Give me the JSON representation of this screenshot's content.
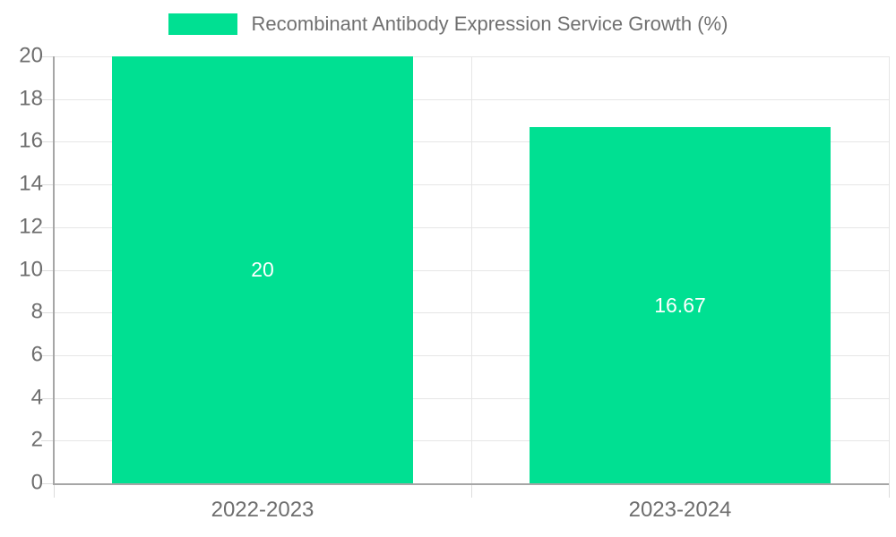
{
  "chart_data": {
    "type": "bar",
    "title": "Recombinant Antibody Expression Service Growth (%)",
    "categories": [
      "2022-2023",
      "2023-2024"
    ],
    "series": [
      {
        "name": "Recombinant Antibody Expression Service Growth (%)",
        "values": [
          20,
          16.67
        ]
      }
    ],
    "value_labels": [
      "20",
      "16.67"
    ],
    "xlabel": "",
    "ylabel": "",
    "ylim": [
      0,
      20
    ],
    "yticks": [
      0,
      2,
      4,
      6,
      8,
      10,
      12,
      14,
      16,
      18,
      20
    ],
    "grid": true,
    "legend_position": "top-center"
  },
  "colors": {
    "background": "#FFFFFF",
    "bar": "#00E092",
    "grid": "#E6E6E6",
    "tick": "#DCDCDC",
    "axis": "#A6A6A6",
    "text": "#6E6E6E",
    "legend_text": "#707070",
    "value_text": "#FFFFFF"
  }
}
